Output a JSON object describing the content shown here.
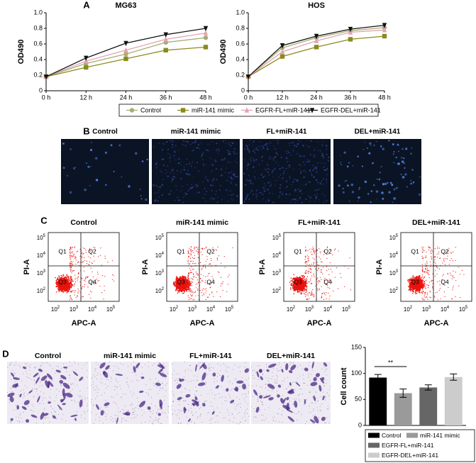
{
  "panel_labels": [
    "A",
    "B",
    "C",
    "D"
  ],
  "chart_data": [
    {
      "type": "line",
      "title": "MG63",
      "ylabel": "OD490",
      "categories": [
        "0 h",
        "12 h",
        "24 h",
        "36 h",
        "48 h"
      ],
      "ylim": [
        0,
        1
      ],
      "yticks": [
        0,
        0.2,
        0.4,
        0.6,
        0.8,
        {
          "value": 1,
          "label": "1.0"
        }
      ],
      "series": [
        {
          "name": "Control",
          "color": "#a9ad72",
          "marker": "circle",
          "values": [
            0.18,
            0.35,
            0.47,
            0.62,
            0.68
          ]
        },
        {
          "name": "miR-141 mimic",
          "color": "#8a8a1e",
          "marker": "square",
          "values": [
            0.18,
            0.3,
            0.41,
            0.52,
            0.56
          ]
        },
        {
          "name": "EGFR-FL+miR-141",
          "color": "#e3a3b3",
          "marker": "triangle",
          "values": [
            0.18,
            0.38,
            0.52,
            0.66,
            0.74
          ]
        },
        {
          "name": "EGFR-DEL+miR-141",
          "color": "#111111",
          "marker": "down-triangle",
          "values": [
            0.18,
            0.42,
            0.61,
            0.72,
            0.8
          ]
        }
      ]
    },
    {
      "type": "line",
      "title": "HOS",
      "ylabel": "OD490",
      "categories": [
        "0 h",
        "12 h",
        "24 h",
        "36 h",
        "48 h"
      ],
      "ylim": [
        0,
        1
      ],
      "yticks": [
        0,
        0.2,
        0.4,
        0.6,
        0.8,
        {
          "value": 1,
          "label": "1.0"
        }
      ],
      "series": [
        {
          "name": "Control",
          "color": "#a9ad72",
          "marker": "circle",
          "values": [
            0.18,
            0.55,
            0.68,
            0.77,
            0.81
          ]
        },
        {
          "name": "miR-141 mimic",
          "color": "#8a8a1e",
          "marker": "square",
          "values": [
            0.18,
            0.44,
            0.56,
            0.66,
            0.7
          ]
        },
        {
          "name": "EGFR-FL+miR-141",
          "color": "#e3a3b3",
          "marker": "triangle",
          "values": [
            0.18,
            0.5,
            0.64,
            0.75,
            0.78
          ]
        },
        {
          "name": "EGFR-DEL+miR-141",
          "color": "#111111",
          "marker": "down-triangle",
          "values": [
            0.18,
            0.58,
            0.7,
            0.79,
            0.84
          ]
        }
      ]
    },
    {
      "type": "bar",
      "ylabel": "Cell count",
      "categories": [
        "Control",
        "miR-141 mimic",
        "EGFR-FL+miR-141",
        "EGFR-DEL+miR-141"
      ],
      "values": [
        92,
        62,
        73,
        93
      ],
      "errors": [
        6,
        8,
        5,
        6
      ],
      "colors": [
        "#000000",
        "#9a9a9a",
        "#666666",
        "#cccccc"
      ],
      "ylim": [
        0,
        150
      ],
      "yticks": [
        0,
        50,
        100,
        150
      ],
      "significance": "**"
    }
  ],
  "panel_b": {
    "titles": [
      "Control",
      "miR-141 mimic",
      "FL+miR-141",
      "DEL+miR-141"
    ]
  },
  "panel_c": {
    "titles": [
      "Control",
      "miR-141 mimic",
      "FL+miR-141",
      "DEL+miR-141"
    ],
    "quadrants": [
      "Q1",
      "Q2",
      "Q3",
      "Q4"
    ],
    "xlabel": "APC-A",
    "ylabel": "PI-A",
    "ticks": [
      {
        "base": "10",
        "exp": "2"
      },
      {
        "base": "10",
        "exp": "3"
      },
      {
        "base": "10",
        "exp": "4"
      },
      {
        "base": "10",
        "exp": "5"
      }
    ]
  },
  "panel_d": {
    "titles": [
      "Control",
      "miR-141 mimic",
      "FL+miR-141",
      "DEL+miR-141"
    ]
  }
}
